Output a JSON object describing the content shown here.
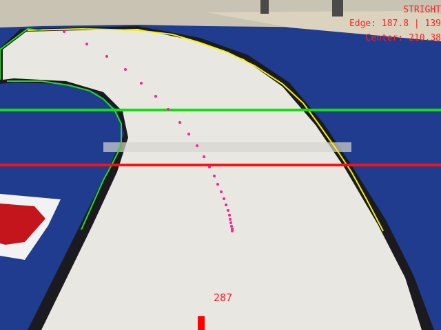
{
  "overlay": {
    "status": "STRIGHT",
    "edge_readout": "Edge: 187.8 | 139",
    "center_readout": "Center: 210.38",
    "steer_value": "287"
  },
  "colors": {
    "floor_blue": "#1f3c8f",
    "track_white": "#e9e7e2",
    "track_border": "#1b1b1f",
    "left_edge_line": "#22dd22",
    "right_edge_line": "#f2f200",
    "center_points": "#ff1e8c",
    "scan_line_upper": "#10e010",
    "scan_line_lower": "#ff1010",
    "hud_text": "#ff2020",
    "steer_marker": "#ff0000"
  },
  "scene_objects": [
    "track-surface",
    "red-toolbox",
    "background-shelf"
  ]
}
